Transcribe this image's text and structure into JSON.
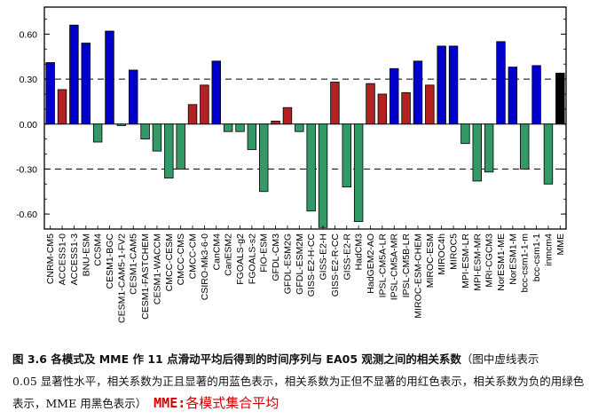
{
  "chart_data": {
    "type": "bar",
    "ylim": [
      -0.7,
      0.78
    ],
    "yticks": [
      -0.6,
      -0.3,
      0.0,
      0.3,
      0.6
    ],
    "ytick_labels": [
      "-0.60",
      "-0.30",
      "0.00",
      "0.30",
      "0.60"
    ],
    "reference_lines": [
      0.3,
      -0.3
    ],
    "categories": [
      "CNRM-CM5",
      "ACCESS1-0",
      "ACCESS1-3",
      "BNU-ESM",
      "CCSM4",
      "CESM1-BGC",
      "CESM1-CAM5-1-FV2",
      "CESM1-CAM5",
      "CESM1-FASTCHEM",
      "CESM1-WACCM",
      "CMCC-CESM",
      "CMCC-CMS",
      "CMCC-CM",
      "CSIRO-Mk3-6-0",
      "CanCM4",
      "CanESM2",
      "FGOALS-g2",
      "FGOALS-s2",
      "FIO-ESM",
      "GFDL-CM3",
      "GFDL-ESM2G",
      "GFDL-ESM2M",
      "GISS-E2-H-CC",
      "GISS-E2-H",
      "GISS-E2-R-CC",
      "GISS-E2-R",
      "HadCM3",
      "HadGEM2-AO",
      "IPSL-CM5A-LR",
      "IPSL-CM5A-MR",
      "IPSL-CM5B-LR",
      "MIROC-ESM-CHEM",
      "MIROC-ESM",
      "MIROC4h",
      "MIROC5",
      "MPI-ESM-LR",
      "MPI-ESM-MR",
      "MRI-CGCM3",
      "NorESM1-ME",
      "NorESM1-M",
      "bcc-csm1-1-m",
      "bcc-csm1-1",
      "inmcm4",
      "MME"
    ],
    "values": [
      0.41,
      0.23,
      0.66,
      0.54,
      -0.12,
      0.62,
      -0.01,
      0.36,
      -0.1,
      -0.18,
      -0.36,
      -0.3,
      0.13,
      0.26,
      0.42,
      -0.05,
      -0.05,
      -0.17,
      -0.45,
      0.02,
      0.11,
      -0.05,
      -0.58,
      -0.69,
      0.28,
      -0.42,
      -0.65,
      0.27,
      0.2,
      0.37,
      0.21,
      0.42,
      0.26,
      0.52,
      0.52,
      -0.13,
      -0.38,
      -0.32,
      0.55,
      0.38,
      -0.3,
      0.39,
      -0.4,
      0.34
    ],
    "colors": {
      "significant_positive": "#0000cc",
      "insignificant_positive": "#b22222",
      "negative": "#339966",
      "mme": "#000000"
    }
  },
  "caption": {
    "prefix": "图 3.6 各模式及 MME 作 11 点滑动平均后得到的时间序列与 EA05 观测之间的相关系数",
    "note_line1": "（图中虚线表示",
    "note_line2": "0.05 显著性水平，相关系数为正且显著的用蓝色表示，相关系数为正但不显著的用红色表示，相关系数为负的用绿色",
    "note_line3": "表示，MME 用黑色表示）",
    "mme_label": "MME:",
    "mme_text": "各模式集合平均"
  }
}
